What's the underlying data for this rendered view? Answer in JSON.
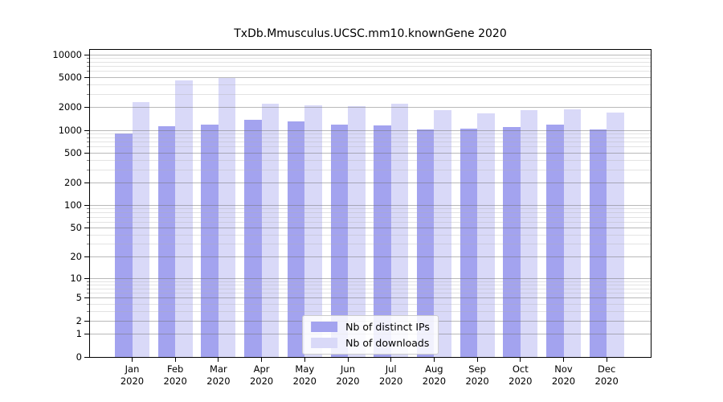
{
  "figure": {
    "background": "#ffffff"
  },
  "chart_data": {
    "type": "bar",
    "title": "TxDb.Mmusculus.UCSC.mm10.knownGene 2020",
    "yscale": "log1p",
    "ylim": [
      0,
      11600
    ],
    "y_ticks": [
      0,
      1,
      2,
      5,
      10,
      20,
      50,
      100,
      200,
      500,
      1000,
      2000,
      5000,
      10000
    ],
    "y_minor_ticks": [
      3,
      4,
      6,
      7,
      8,
      9,
      30,
      40,
      60,
      70,
      80,
      90,
      300,
      400,
      600,
      700,
      800,
      900,
      3000,
      4000,
      6000,
      7000,
      8000,
      9000
    ],
    "categories": [
      "Jan",
      "Feb",
      "Mar",
      "Apr",
      "May",
      "Jun",
      "Jul",
      "Aug",
      "Sep",
      "Oct",
      "Nov",
      "Dec"
    ],
    "year": "2020",
    "grid": {
      "major": true,
      "minor": true,
      "orientation": "horizontal",
      "drawn_over_bars": true
    },
    "legend_position": "lower center",
    "series": [
      {
        "name": "Nb of distinct IPs",
        "color": "#a3a3ef",
        "values": [
          900,
          1120,
          1200,
          1375,
          1310,
          1180,
          1170,
          1020,
          1040,
          1100,
          1200,
          1020
        ]
      },
      {
        "name": "Nb of downloads",
        "color": "#d9d9f8",
        "values": [
          2340,
          4600,
          4950,
          2240,
          2140,
          2090,
          2230,
          1830,
          1690,
          1840,
          1880,
          1730
        ]
      }
    ]
  },
  "legend": {
    "items": [
      {
        "label": "Nb of distinct IPs",
        "color": "#a3a3ef"
      },
      {
        "label": "Nb of downloads",
        "color": "#d9d9f8"
      }
    ]
  },
  "colors": {
    "bar_distinct_ips": "#a3a3ef",
    "bar_downloads": "#d9d9f8",
    "grid_major": "#b3b3b3",
    "grid_minor": "#e2e2e2",
    "axis": "#000000",
    "legend_border": "#cccccc"
  }
}
